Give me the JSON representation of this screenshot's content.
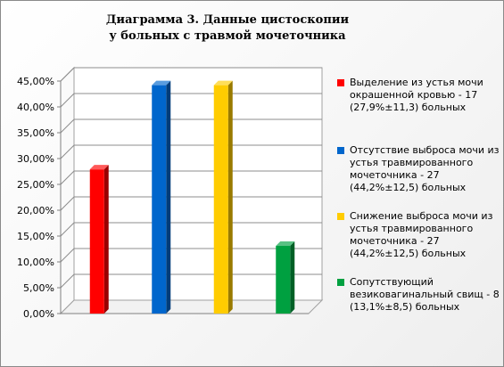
{
  "chart_data": {
    "type": "bar",
    "title_lines": [
      "Диаграмма 3. Данные цистоскопии",
      "у больных с травмой мочеточника"
    ],
    "ylim": [
      0,
      0.45
    ],
    "y_ticks": [
      "0,00%",
      "5,00%",
      "10,00%",
      "15,00%",
      "20,00%",
      "25,00%",
      "30,00%",
      "35,00%",
      "40,00%",
      "45,00%"
    ],
    "grid": true,
    "legend_position": "right",
    "series": [
      {
        "value": 0.279,
        "color": "#ff0000",
        "legend": [
          "Выделение из устья мочи",
          "окрашенной кровью - 17",
          "(27,9%±11,3) больных"
        ]
      },
      {
        "value": 0.442,
        "color": "#0066cc",
        "legend": [
          "Отсутствие выброса мочи из",
          "устья травмированного",
          "мочеточника - 27",
          "(44,2%±12,5) больных"
        ]
      },
      {
        "value": 0.442,
        "color": "#ffcc00",
        "legend": [
          "Снижение выброса мочи из",
          "устья травмированного",
          "мочеточника - 27",
          "(44,2%±12,5) больных"
        ]
      },
      {
        "value": 0.131,
        "color": "#00a040",
        "legend": [
          "Сопутствующий",
          "везиковагинальный свищ - 8",
          "(13,1%±8,5) больных"
        ]
      }
    ]
  }
}
